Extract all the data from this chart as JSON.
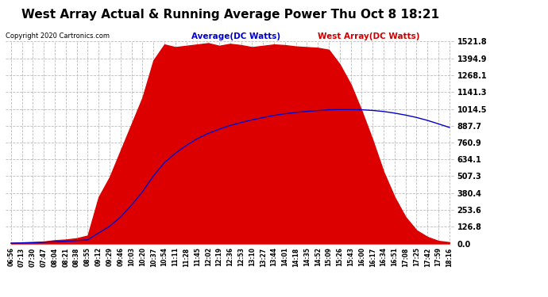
{
  "title": "West Array Actual & Running Average Power Thu Oct 8 18:21",
  "copyright": "Copyright 2020 Cartronics.com",
  "legend_avg": "Average(DC Watts)",
  "legend_west": "West Array(DC Watts)",
  "yticks": [
    0.0,
    126.8,
    253.6,
    380.4,
    507.3,
    634.1,
    760.9,
    887.7,
    1014.5,
    1141.3,
    1268.1,
    1394.9,
    1521.8
  ],
  "ymax": 1521.8,
  "ymin": 0.0,
  "background_color": "#ffffff",
  "plot_bg_color": "#ffffff",
  "grid_color": "#bbbbbb",
  "fill_color": "#dd0000",
  "line_color": "#0000cc",
  "title_color": "#000000",
  "copyright_color": "#000000",
  "avg_legend_color": "#0000cc",
  "west_legend_color": "#cc0000",
  "xtick_labels": [
    "06:56",
    "07:13",
    "07:30",
    "07:47",
    "08:04",
    "08:21",
    "08:38",
    "08:55",
    "09:12",
    "09:29",
    "09:46",
    "10:03",
    "10:20",
    "10:37",
    "10:54",
    "11:11",
    "11:28",
    "11:45",
    "12:02",
    "12:19",
    "12:36",
    "12:53",
    "13:10",
    "13:27",
    "13:44",
    "14:01",
    "14:18",
    "14:35",
    "14:52",
    "15:09",
    "15:26",
    "15:43",
    "16:00",
    "16:17",
    "16:34",
    "16:51",
    "17:08",
    "17:25",
    "17:42",
    "17:59",
    "18:16"
  ],
  "west_data": [
    5,
    8,
    10,
    15,
    25,
    30,
    40,
    60,
    350,
    500,
    700,
    900,
    1100,
    1380,
    1500,
    1480,
    1490,
    1500,
    1510,
    1490,
    1505,
    1495,
    1480,
    1490,
    1500,
    1495,
    1485,
    1480,
    1475,
    1460,
    1350,
    1200,
    1000,
    780,
    540,
    350,
    200,
    100,
    50,
    20,
    10
  ],
  "avg_data": [
    3,
    5,
    7,
    10,
    14,
    18,
    22,
    28,
    80,
    130,
    200,
    290,
    390,
    510,
    610,
    680,
    740,
    790,
    830,
    862,
    890,
    912,
    932,
    950,
    965,
    978,
    988,
    996,
    1002,
    1008,
    1010,
    1010,
    1008,
    1003,
    995,
    983,
    968,
    950,
    928,
    902,
    875
  ]
}
